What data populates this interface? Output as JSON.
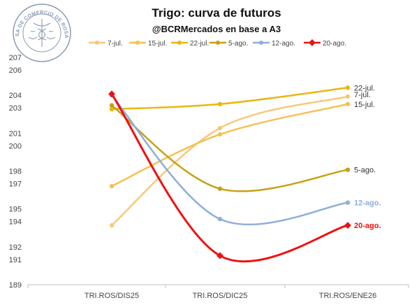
{
  "chart_data": {
    "type": "line",
    "title": "Trigo: curva de futuros",
    "subtitle": "@BCRMercados en base a A3",
    "categories": [
      "TRI.ROS/DIS25",
      "TRI.ROS/DIC25",
      "TRI.ROS/ENE26"
    ],
    "y_ticks": [
      189,
      191,
      192,
      194,
      195,
      197,
      198,
      200,
      201,
      203,
      204,
      206,
      207
    ],
    "ylim": [
      189,
      207
    ],
    "grid": false,
    "legend_position": "top",
    "series": [
      {
        "name": "7-jul.",
        "values": [
          193.7,
          201.4,
          203.9
        ],
        "color": "#f5c97a",
        "end_label": "7-jul.",
        "label_color": "#333333",
        "bold": false
      },
      {
        "name": "15-jul.",
        "values": [
          196.8,
          200.9,
          203.3
        ],
        "color": "#f6c052",
        "end_label": "15-jul.",
        "label_color": "#333333",
        "bold": false
      },
      {
        "name": "22-jul.",
        "values": [
          202.9,
          203.3,
          204.6
        ],
        "color": "#eab70f",
        "end_label": "22-jul.",
        "label_color": "#333333",
        "bold": false
      },
      {
        "name": "5-ago.",
        "values": [
          203.2,
          196.6,
          198.1
        ],
        "color": "#c9a012",
        "end_label": "5-ago.",
        "label_color": "#333333",
        "bold": false
      },
      {
        "name": "12-ago.",
        "values": [
          204.0,
          194.2,
          195.5
        ],
        "color": "#8eaedb",
        "end_label": "12-ago.",
        "label_color": "#8eaedb",
        "bold": true
      },
      {
        "name": "20-ago.",
        "values": [
          204.1,
          191.3,
          193.7
        ],
        "color": "#ee1111",
        "end_label": "20-ago.",
        "label_color": "#ee1111",
        "bold": true
      }
    ]
  },
  "logo": {
    "ring_text": "BOLSA DE COMERCIO DE ROSARIO",
    "color": "#8a9bb5"
  }
}
